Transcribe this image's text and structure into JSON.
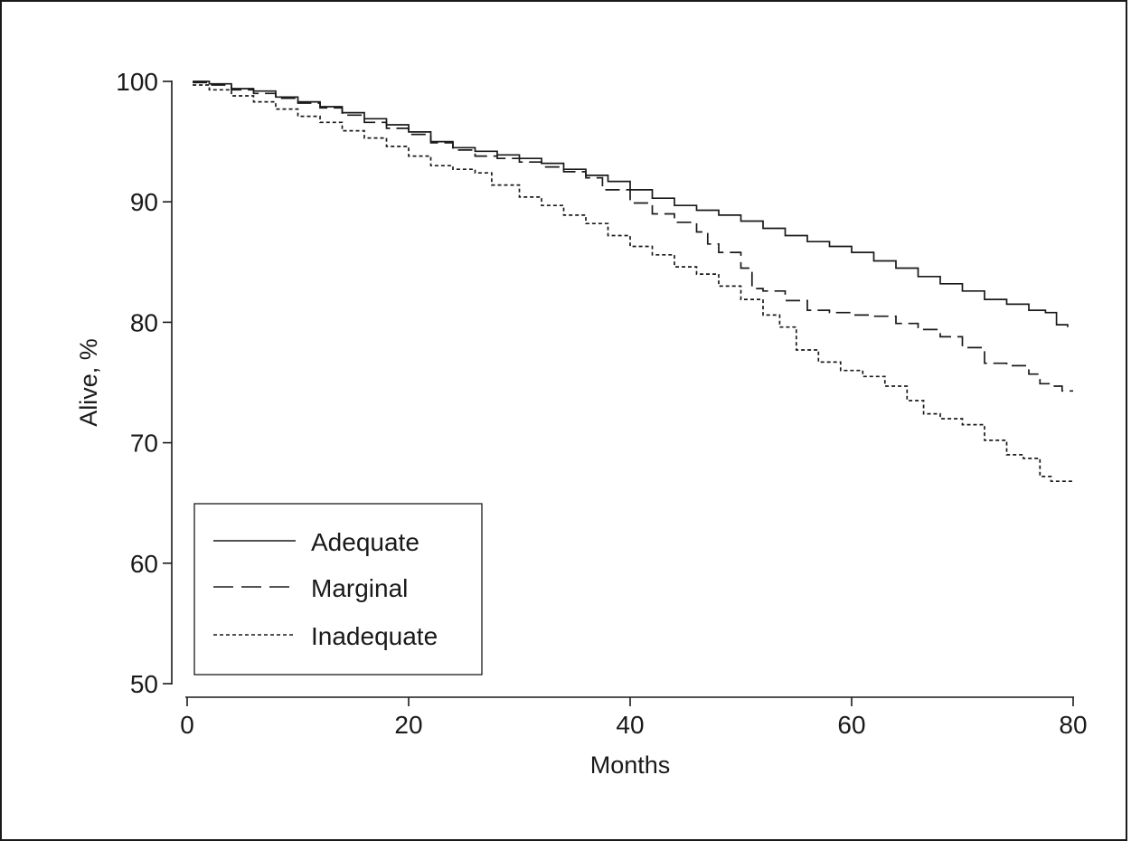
{
  "chart_data": {
    "type": "line",
    "title": "",
    "xlabel": "Months",
    "ylabel": "Alive, %",
    "xlim": [
      0,
      80
    ],
    "ylim": [
      50,
      100
    ],
    "xticks": [
      0,
      20,
      40,
      60,
      80
    ],
    "yticks": [
      50,
      60,
      70,
      80,
      90,
      100
    ],
    "grid": false,
    "legend_position": "bottom-left",
    "series": [
      {
        "name": "Adequate",
        "style": "solid",
        "color": "#1a1a1a",
        "points": [
          [
            0.5,
            100
          ],
          [
            2,
            99.8
          ],
          [
            4,
            99.4
          ],
          [
            6,
            99.2
          ],
          [
            8,
            98.7
          ],
          [
            10,
            98.3
          ],
          [
            12,
            97.9
          ],
          [
            14,
            97.4
          ],
          [
            16,
            96.9
          ],
          [
            18,
            96.4
          ],
          [
            20,
            95.8
          ],
          [
            22,
            95.0
          ],
          [
            24,
            94.5
          ],
          [
            26,
            94.2
          ],
          [
            28,
            93.9
          ],
          [
            30,
            93.6
          ],
          [
            32,
            93.2
          ],
          [
            34,
            92.7
          ],
          [
            36,
            92.2
          ],
          [
            38,
            91.7
          ],
          [
            40,
            91.0
          ],
          [
            42,
            90.3
          ],
          [
            44,
            89.7
          ],
          [
            46,
            89.3
          ],
          [
            48,
            88.9
          ],
          [
            50,
            88.4
          ],
          [
            52,
            87.8
          ],
          [
            54,
            87.2
          ],
          [
            56,
            86.7
          ],
          [
            58,
            86.3
          ],
          [
            60,
            85.8
          ],
          [
            62,
            85.1
          ],
          [
            64,
            84.5
          ],
          [
            66,
            83.8
          ],
          [
            68,
            83.2
          ],
          [
            70,
            82.6
          ],
          [
            72,
            81.9
          ],
          [
            74,
            81.5
          ],
          [
            76,
            81.0
          ],
          [
            77.5,
            80.8
          ],
          [
            78.5,
            79.8
          ],
          [
            79.5,
            79.6
          ]
        ]
      },
      {
        "name": "Marginal",
        "style": "dashed",
        "color": "#1a1a1a",
        "points": [
          [
            0.5,
            99.9
          ],
          [
            2,
            99.7
          ],
          [
            4,
            99.3
          ],
          [
            6,
            99.0
          ],
          [
            8,
            98.6
          ],
          [
            10,
            98.2
          ],
          [
            12,
            97.8
          ],
          [
            14,
            97.2
          ],
          [
            16,
            96.6
          ],
          [
            18,
            96.1
          ],
          [
            20,
            95.6
          ],
          [
            22,
            94.9
          ],
          [
            24,
            94.3
          ],
          [
            26,
            93.8
          ],
          [
            28,
            93.6
          ],
          [
            30,
            93.3
          ],
          [
            32,
            92.9
          ],
          [
            34,
            92.5
          ],
          [
            36,
            92.0
          ],
          [
            37.5,
            91.0
          ],
          [
            40,
            89.9
          ],
          [
            42,
            89.0
          ],
          [
            44,
            88.3
          ],
          [
            46,
            87.5
          ],
          [
            47,
            86.5
          ],
          [
            48,
            85.8
          ],
          [
            50,
            84.5
          ],
          [
            51,
            82.8
          ],
          [
            52,
            82.6
          ],
          [
            54,
            81.8
          ],
          [
            56,
            81.0
          ],
          [
            58,
            80.8
          ],
          [
            60,
            80.6
          ],
          [
            62,
            80.5
          ],
          [
            64,
            79.9
          ],
          [
            66,
            79.4
          ],
          [
            68,
            78.8
          ],
          [
            70,
            77.9
          ],
          [
            72,
            76.6
          ],
          [
            74,
            76.4
          ],
          [
            76,
            75.7
          ],
          [
            77,
            74.9
          ],
          [
            78,
            74.7
          ],
          [
            79,
            74.3
          ],
          [
            80,
            74.3
          ]
        ]
      },
      {
        "name": "Inadequate",
        "style": "dotted",
        "color": "#1a1a1a",
        "points": [
          [
            0.5,
            99.7
          ],
          [
            2,
            99.3
          ],
          [
            4,
            98.8
          ],
          [
            6,
            98.3
          ],
          [
            8,
            97.7
          ],
          [
            10,
            97.1
          ],
          [
            12,
            96.6
          ],
          [
            14,
            95.9
          ],
          [
            16,
            95.3
          ],
          [
            18,
            94.6
          ],
          [
            20,
            93.8
          ],
          [
            22,
            93.0
          ],
          [
            24,
            92.7
          ],
          [
            26,
            92.4
          ],
          [
            27.5,
            91.4
          ],
          [
            30,
            90.4
          ],
          [
            32,
            89.7
          ],
          [
            34,
            88.9
          ],
          [
            36,
            88.2
          ],
          [
            38,
            87.2
          ],
          [
            40,
            86.3
          ],
          [
            42,
            85.6
          ],
          [
            44,
            84.6
          ],
          [
            46,
            84.0
          ],
          [
            48,
            83.0
          ],
          [
            50,
            81.9
          ],
          [
            52,
            80.6
          ],
          [
            53.5,
            79.6
          ],
          [
            55,
            77.7
          ],
          [
            57,
            76.7
          ],
          [
            59,
            76.0
          ],
          [
            61,
            75.5
          ],
          [
            63,
            74.7
          ],
          [
            65,
            73.5
          ],
          [
            66.5,
            72.4
          ],
          [
            68,
            72.0
          ],
          [
            70,
            71.5
          ],
          [
            72,
            70.2
          ],
          [
            74,
            69.0
          ],
          [
            75.5,
            68.7
          ],
          [
            77,
            67.2
          ],
          [
            78,
            66.8
          ],
          [
            80,
            66.7
          ]
        ]
      }
    ]
  }
}
